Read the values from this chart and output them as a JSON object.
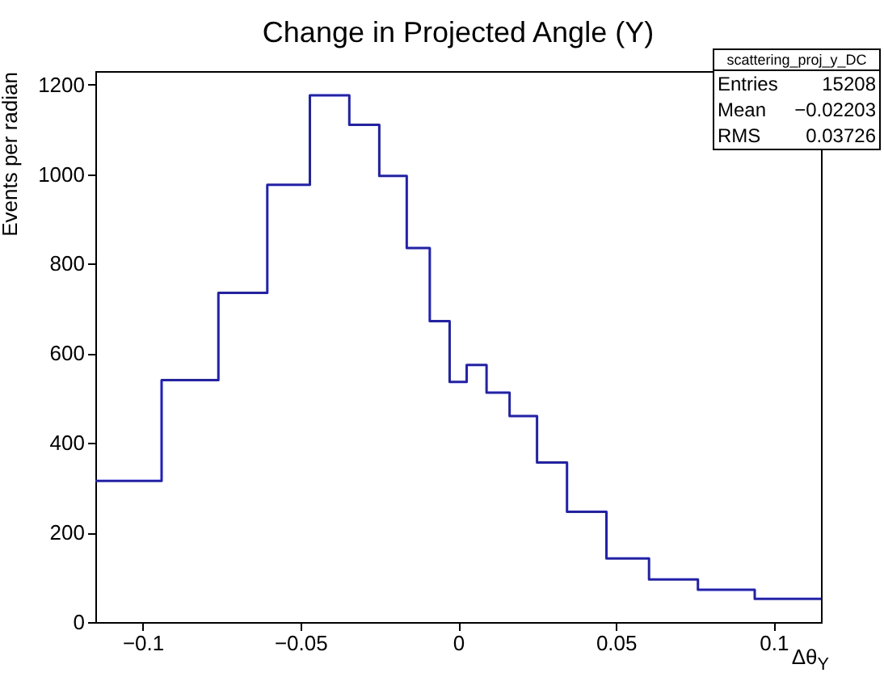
{
  "chart_data": {
    "type": "histogram",
    "title": "Change in Projected Angle (Y)",
    "xlabel": "Δθ$_{Y}$",
    "ylabel": "Events per radian",
    "bins": [
      -0.115,
      -0.094,
      -0.076,
      -0.0605,
      -0.047,
      -0.0345,
      -0.025,
      -0.0163,
      -0.009,
      -0.0027,
      0.0027,
      0.009,
      0.0163,
      0.025,
      0.0345,
      0.047,
      0.0605,
      0.076,
      0.094,
      0.115
    ],
    "values": [
      315,
      540,
      735,
      976,
      1176,
      1110,
      996,
      835,
      672,
      536,
      574,
      512,
      460,
      356,
      246,
      142,
      95,
      72,
      52
    ],
    "color": "#1f1fbf",
    "xlim": [
      -0.115,
      0.115
    ],
    "xticks": [
      -0.1,
      -0.05,
      0,
      0.05,
      0.1
    ],
    "ylim": [
      0,
      1230
    ],
    "yticks": [
      0,
      200,
      400,
      600,
      800,
      1000,
      1200
    ],
    "annotations": [
      "scattering_proj_y_DC",
      "Entries 15208",
      "Mean −0.02203",
      "RMS 0.03726"
    ],
    "grid": false
  }
}
